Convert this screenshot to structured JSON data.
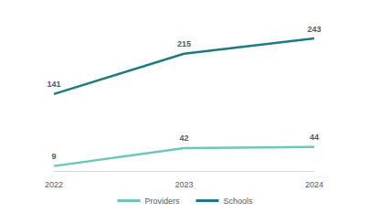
{
  "chart_data": {
    "type": "line",
    "categories": [
      "2022",
      "2023",
      "2024"
    ],
    "series": [
      {
        "name": "Providers",
        "color": "#6cc7bb",
        "values": [
          9,
          42,
          44
        ]
      },
      {
        "name": "Schools",
        "color": "#1c7a80",
        "values": [
          141,
          215,
          243
        ]
      }
    ],
    "ylim": [
      0,
      300
    ],
    "grid": false,
    "legend": "bottom",
    "data_labels": true,
    "tick_labels": "x"
  }
}
